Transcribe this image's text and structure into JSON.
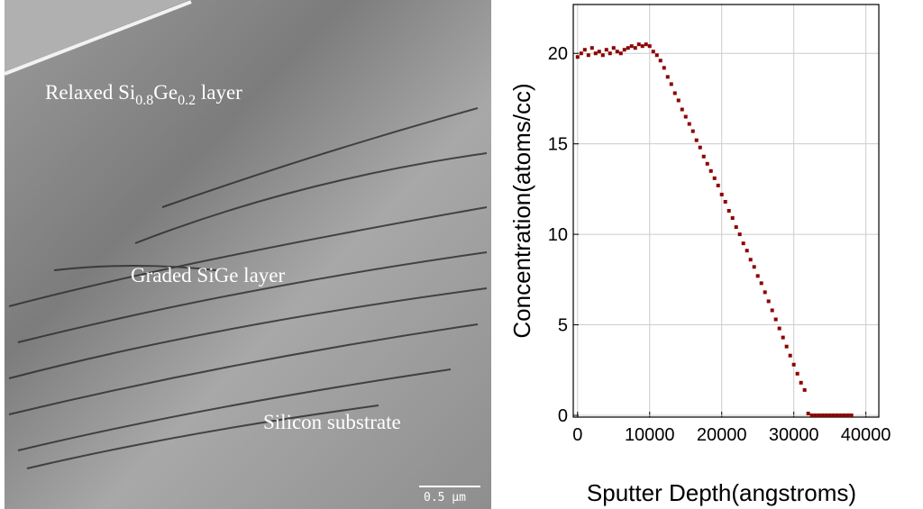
{
  "image": {
    "labels": {
      "relaxed": [
        "Relaxed Si",
        "0.8",
        "Ge",
        "0.2",
        " layer"
      ],
      "graded": "Graded SiGe layer",
      "substrate": "Silicon substrate"
    },
    "scale_bar": "0.5 µm"
  },
  "chart_data": {
    "type": "scatter",
    "x_label": "Sputter Depth(angstroms)",
    "y_label": "Concentration(atoms/cc)",
    "xlim": [
      -600,
      41800
    ],
    "ylim": [
      -0.1,
      22.7
    ],
    "xticks": [
      0,
      10000,
      20000,
      30000,
      40000
    ],
    "yticks": [
      0,
      5,
      10,
      15,
      20
    ],
    "grid": true,
    "series": [
      {
        "color": "#8b0000",
        "x": [
          0,
          500,
          1000,
          1500,
          2000,
          2500,
          3000,
          3500,
          4000,
          4500,
          5000,
          5500,
          6000,
          6500,
          7000,
          7500,
          8000,
          8500,
          9000,
          9500,
          10000,
          10500,
          11000,
          11500,
          12000,
          12500,
          13000,
          13500,
          14000,
          14500,
          15000,
          15500,
          16000,
          16500,
          17000,
          17500,
          18000,
          18500,
          19000,
          19500,
          20000,
          20500,
          21000,
          21500,
          22000,
          22500,
          23000,
          23500,
          24000,
          24500,
          25000,
          25500,
          26000,
          26500,
          27000,
          27500,
          28000,
          28500,
          29000,
          29500,
          30000,
          30500,
          31000,
          31500,
          32000,
          32500,
          33000,
          33500,
          34000,
          34500,
          35000,
          35500,
          36000,
          36500,
          37000,
          37500,
          38000
        ],
        "values": [
          19.8,
          20.0,
          20.2,
          19.9,
          20.3,
          20.0,
          20.1,
          19.9,
          20.2,
          20.0,
          20.3,
          20.1,
          20.0,
          20.2,
          20.3,
          20.4,
          20.3,
          20.5,
          20.4,
          20.5,
          20.4,
          20.1,
          19.9,
          19.6,
          19.2,
          18.7,
          18.3,
          17.8,
          17.4,
          16.9,
          16.5,
          16.1,
          15.7,
          15.2,
          14.8,
          14.3,
          13.9,
          13.5,
          13.1,
          12.7,
          12.2,
          11.8,
          11.3,
          10.9,
          10.4,
          10.0,
          9.5,
          9.1,
          8.6,
          8.2,
          7.7,
          7.3,
          6.8,
          6.3,
          5.8,
          5.3,
          4.8,
          4.3,
          3.8,
          3.3,
          2.8,
          2.3,
          1.8,
          1.4,
          0.1,
          0,
          0,
          0,
          0,
          0,
          0,
          0,
          0,
          0,
          0,
          0,
          0
        ]
      }
    ]
  }
}
